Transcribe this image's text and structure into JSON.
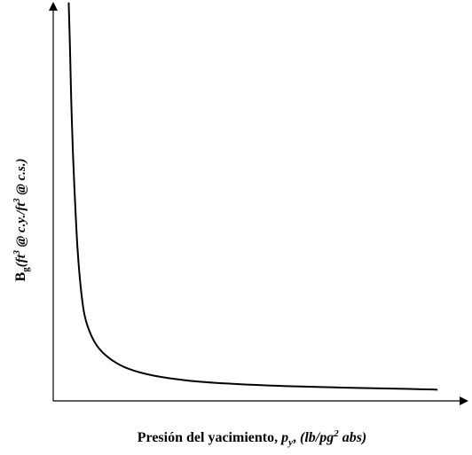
{
  "colors": {
    "background": "#ffffff",
    "curve": "#000000",
    "axes": "#000000",
    "text": "#000000"
  },
  "chart_data": {
    "type": "line",
    "title": "",
    "xlabel": {
      "main": "Presión del yacimiento, ",
      "var": "p",
      "var_sub": "y",
      "sep": ", ",
      "unit_open": "(lb/pg",
      "unit_sup": "2",
      "unit_close": " abs)"
    },
    "ylabel": {
      "main": "B",
      "main_sub": "g",
      "part1": "(ft",
      "sup1": "3",
      "part2": " @ c.y./ft",
      "sup2": "3",
      "part3": " @ c.s.)"
    },
    "xlim": [
      0,
      1
    ],
    "ylim": [
      0,
      1
    ],
    "grid": false,
    "legend": "none",
    "series": [
      {
        "values": [
          [
            0.037,
            0.992
          ],
          [
            0.04,
            0.88
          ],
          [
            0.043,
            0.75
          ],
          [
            0.047,
            0.62
          ],
          [
            0.052,
            0.5
          ],
          [
            0.058,
            0.38
          ],
          [
            0.066,
            0.28
          ],
          [
            0.075,
            0.213
          ],
          [
            0.09,
            0.165
          ],
          [
            0.11,
            0.13
          ],
          [
            0.14,
            0.102
          ],
          [
            0.18,
            0.08
          ],
          [
            0.24,
            0.063
          ],
          [
            0.32,
            0.051
          ],
          [
            0.42,
            0.043
          ],
          [
            0.55,
            0.037
          ],
          [
            0.7,
            0.033
          ],
          [
            0.85,
            0.03
          ],
          [
            0.916,
            0.028
          ]
        ]
      }
    ]
  }
}
